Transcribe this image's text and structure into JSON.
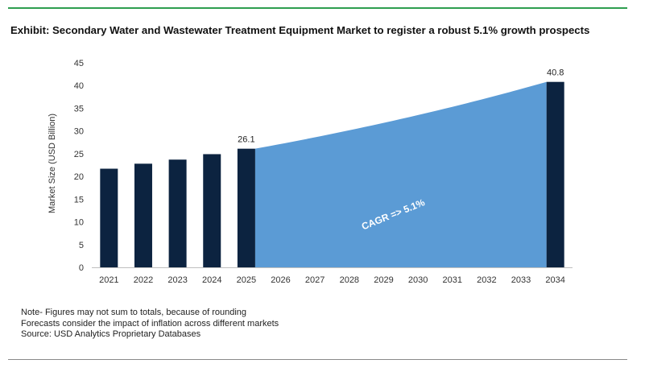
{
  "title": "Exhibit: Secondary Water and Wastewater Treatment Equipment Market to register a robust 5.1% growth prospects",
  "notes": [
    "Note- Figures may not sum to totals, because of rounding",
    "Forecasts consider the impact of inflation across different markets",
    "Source: USD Analytics Proprietary Databases"
  ],
  "colors": {
    "bar": "#0c2340",
    "area": "#5b9bd5",
    "accent_rule": "#2e9e4f"
  },
  "chart_data": {
    "type": "bar",
    "title": "Exhibit: Secondary Water and Wastewater Treatment Equipment Market to register a robust 5.1% growth prospects",
    "xlabel": "",
    "ylabel": "Market Size (USD Billion)",
    "ylim": [
      0,
      45
    ],
    "yticks": [
      0,
      5,
      10,
      15,
      20,
      25,
      30,
      35,
      40,
      45
    ],
    "grid": false,
    "categories": [
      "2021",
      "2022",
      "2023",
      "2024",
      "2025",
      "2026",
      "2027",
      "2028",
      "2029",
      "2030",
      "2031",
      "2032",
      "2033",
      "2034"
    ],
    "bars": [
      {
        "x": "2021",
        "value": 21.7
      },
      {
        "x": "2022",
        "value": 22.8
      },
      {
        "x": "2023",
        "value": 23.7
      },
      {
        "x": "2024",
        "value": 24.9
      },
      {
        "x": "2025",
        "value": 26.1,
        "label": "26.1"
      },
      {
        "x": "2034",
        "value": 40.8,
        "label": "40.8"
      }
    ],
    "area": {
      "from": "2025",
      "to": "2034",
      "start_value": 26.1,
      "end_value": 40.8,
      "growth_rate": 0.051,
      "annotation": "CAGR => 5.1%"
    }
  }
}
